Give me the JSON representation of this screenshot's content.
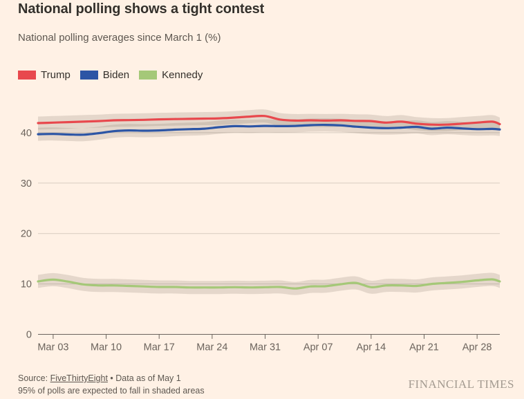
{
  "header": {
    "title": "National polling shows a tight contest",
    "subtitle": "National polling averages since March 1 (%)"
  },
  "legend": [
    {
      "label": "Trump",
      "color": "#e8484d"
    },
    {
      "label": "Biden",
      "color": "#2c55a5"
    },
    {
      "label": "Kennedy",
      "color": "#a5c878"
    }
  ],
  "chart_data": {
    "type": "line",
    "title": "National polling shows a tight contest",
    "subtitle": "National polling averages since March 1 (%)",
    "unit": "%",
    "x_unit": "days since Mar 1",
    "x": [
      0,
      2,
      4,
      6,
      8,
      10,
      12,
      14,
      16,
      18,
      20,
      22,
      24,
      26,
      28,
      30,
      32,
      34,
      36,
      38,
      40,
      42,
      44,
      46,
      48,
      50,
      52,
      54,
      56,
      58,
      60,
      61
    ],
    "series": [
      {
        "name": "Trump",
        "color": "#e8484d",
        "band_halfwidth": 1.3,
        "values": [
          41.9,
          42.0,
          42.1,
          42.2,
          42.3,
          42.45,
          42.5,
          42.55,
          42.65,
          42.7,
          42.75,
          42.8,
          42.85,
          43.0,
          43.2,
          43.3,
          42.6,
          42.4,
          42.45,
          42.4,
          42.45,
          42.35,
          42.3,
          42.0,
          42.2,
          41.8,
          41.6,
          41.6,
          41.8,
          42.0,
          42.2,
          41.7
        ]
      },
      {
        "name": "Biden",
        "color": "#2c55a5",
        "band_halfwidth": 1.3,
        "values": [
          39.7,
          39.75,
          39.65,
          39.6,
          39.9,
          40.3,
          40.45,
          40.4,
          40.45,
          40.6,
          40.7,
          40.8,
          41.1,
          41.3,
          41.25,
          41.35,
          41.3,
          41.35,
          41.5,
          41.55,
          41.45,
          41.2,
          41.0,
          40.9,
          41.0,
          41.15,
          40.8,
          41.0,
          40.85,
          40.7,
          40.75,
          40.65
        ]
      },
      {
        "name": "Kennedy",
        "color": "#a5c878",
        "band_halfwidth": 1.3,
        "values": [
          10.5,
          10.85,
          10.45,
          9.9,
          9.7,
          9.7,
          9.6,
          9.5,
          9.4,
          9.4,
          9.3,
          9.3,
          9.3,
          9.35,
          9.3,
          9.35,
          9.4,
          9.1,
          9.5,
          9.55,
          9.95,
          10.2,
          9.35,
          9.7,
          9.7,
          9.6,
          10.0,
          10.2,
          10.4,
          10.7,
          10.9,
          10.5
        ]
      }
    ],
    "yticks": [
      0,
      10,
      20,
      30,
      40
    ],
    "ylim": [
      0,
      46
    ],
    "xlim_days": [
      0,
      61
    ],
    "xticks": [
      {
        "label": "Mar 03",
        "day": 2
      },
      {
        "label": "Mar 10",
        "day": 9
      },
      {
        "label": "Mar 17",
        "day": 16
      },
      {
        "label": "Mar 24",
        "day": 23
      },
      {
        "label": "Mar 31",
        "day": 30
      },
      {
        "label": "Apr 07",
        "day": 37
      },
      {
        "label": "Apr 14",
        "day": 44
      },
      {
        "label": "Apr 21",
        "day": 51
      },
      {
        "label": "Apr 28",
        "day": 58
      }
    ],
    "grid": "horizontal",
    "legend_position": "top-left",
    "band_color": "rgba(125,114,102,0.20)",
    "note": "95% of polls are expected to fall in shaded areas"
  },
  "footer": {
    "source_prefix": "Source: ",
    "source_link": "FiveThirtyEight",
    "source_suffix": " • Data as of May 1",
    "note": "95% of polls are expected to fall in shaded areas"
  },
  "brand": "FINANCIAL TIMES",
  "colors": {
    "background": "#fff1e5",
    "text_dark": "#33302b",
    "text_muted": "#5d5750",
    "axis": "#6b635c",
    "gridline": "#d8ccc0",
    "brand": "#a39a90"
  }
}
